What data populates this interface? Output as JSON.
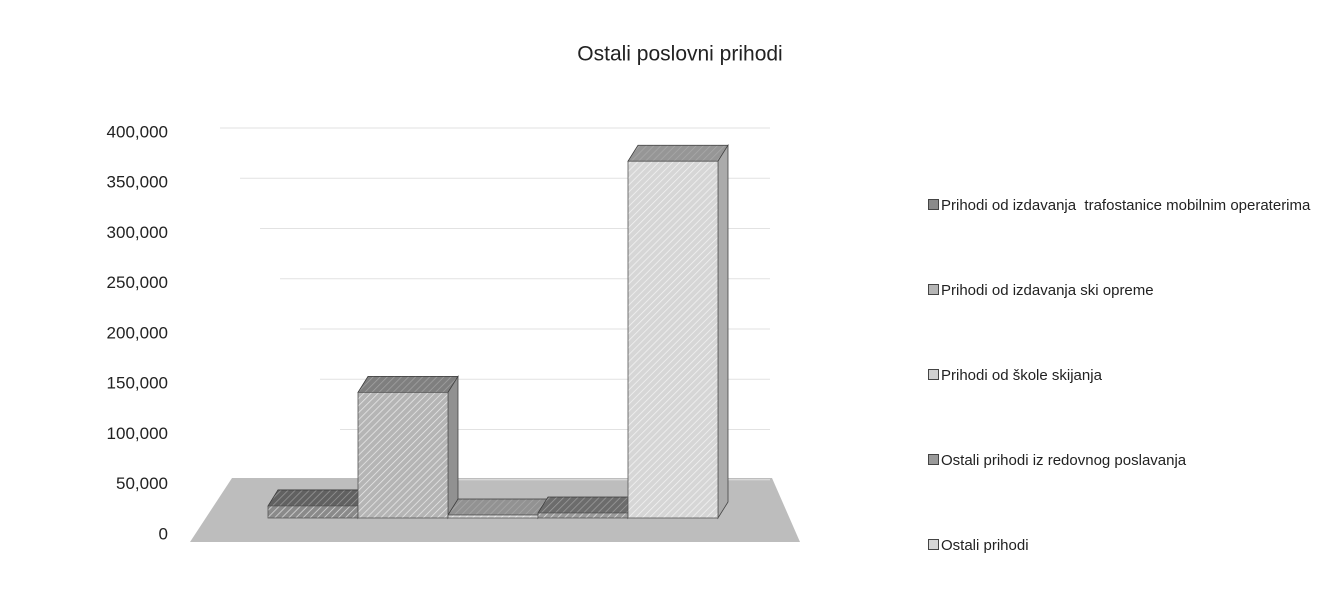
{
  "chart_data": {
    "type": "bar3d",
    "title": "Ostali poslovni prihodi",
    "categories": [
      null
    ],
    "series": [
      {
        "name": "Prihodi od izdavanja  trafostanice mobilnim operaterima",
        "color": "#8a8a8a",
        "values": [
          12000
        ]
      },
      {
        "name": "Prihodi od izdavanja ski opreme",
        "color": "#b5b5b5",
        "values": [
          125000
        ]
      },
      {
        "name": "Prihodi od škole skijanja",
        "color": "#d0d0d0",
        "values": [
          3000
        ]
      },
      {
        "name": "Ostali prihodi iz redovnog poslavanja",
        "color": "#9a9a9a",
        "values": [
          5000
        ]
      },
      {
        "name": "Ostali prihodi",
        "color": "#d6d6d6",
        "values": [
          355000
        ]
      }
    ],
    "ylim": [
      0,
      400000
    ],
    "yticks": [
      0,
      {
        "value": 50000,
        "label": "50,000"
      },
      {
        "value": 100000,
        "label": "100,000"
      },
      {
        "value": 150000,
        "label": "150,000"
      },
      {
        "value": 200000,
        "label": "200,000"
      },
      {
        "value": 250000,
        "label": "250,000"
      },
      {
        "value": 300000,
        "label": "300,000"
      },
      {
        "value": 350000,
        "label": "350,000"
      },
      {
        "value": 400000,
        "label": "400,000"
      }
    ],
    "grid": true,
    "legend": "right"
  }
}
